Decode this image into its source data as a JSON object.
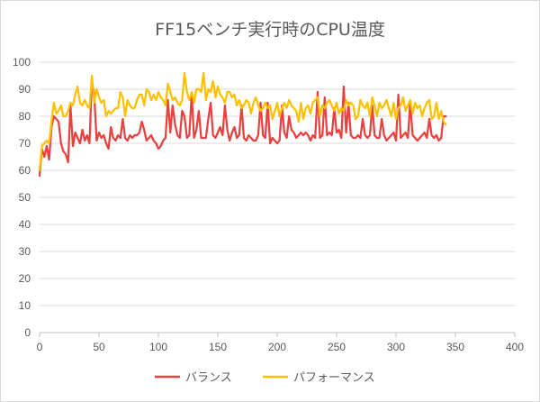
{
  "chart_data": {
    "type": "line",
    "title": "FF15ベンチ実行時のCPU温度",
    "xlim": [
      0,
      400
    ],
    "ylim": [
      0,
      100
    ],
    "x_ticks": [
      0,
      50,
      100,
      150,
      200,
      250,
      300,
      350,
      400
    ],
    "y_ticks": [
      0,
      10,
      20,
      30,
      40,
      50,
      60,
      70,
      80,
      90,
      100
    ],
    "grid": "horizontal",
    "legend_position": "bottom",
    "series": [
      {
        "name": "バランス",
        "color": "#e8413f",
        "x": [
          0,
          2,
          4,
          6,
          8,
          10,
          12,
          14,
          16,
          18,
          20,
          22,
          24,
          26,
          28,
          30,
          32,
          34,
          36,
          38,
          40,
          42,
          44,
          46,
          48,
          50,
          52,
          54,
          56,
          58,
          60,
          62,
          64,
          66,
          68,
          70,
          72,
          74,
          76,
          78,
          80,
          82,
          84,
          86,
          88,
          90,
          92,
          94,
          96,
          98,
          100,
          102,
          104,
          106,
          108,
          110,
          112,
          114,
          116,
          118,
          120,
          122,
          124,
          126,
          128,
          130,
          132,
          134,
          136,
          138,
          140,
          142,
          144,
          146,
          148,
          150,
          152,
          154,
          156,
          158,
          160,
          162,
          164,
          166,
          168,
          170,
          172,
          174,
          176,
          178,
          180,
          182,
          184,
          186,
          188,
          190,
          192,
          194,
          196,
          198,
          200,
          202,
          204,
          206,
          208,
          210,
          212,
          214,
          216,
          218,
          220,
          222,
          224,
          226,
          228,
          230,
          232,
          234,
          236,
          238,
          240,
          242,
          244,
          246,
          248,
          250,
          252,
          254,
          256,
          258,
          260,
          262,
          264,
          266,
          268,
          270,
          272,
          274,
          276,
          278,
          280,
          282,
          284,
          286,
          288,
          290,
          292,
          294,
          296,
          298,
          300,
          302,
          304,
          306,
          308,
          310,
          312,
          314,
          316,
          318,
          320,
          322,
          324,
          326,
          328,
          330,
          332,
          334,
          336,
          338,
          340,
          342
        ],
        "values": [
          58,
          68,
          65,
          69,
          64,
          76,
          80,
          79,
          78,
          70,
          67,
          66,
          63,
          84,
          69,
          74,
          72,
          70,
          75,
          71,
          73,
          70,
          93,
          88,
          71,
          74,
          72,
          73,
          70,
          68,
          76,
          72,
          71,
          73,
          72,
          79,
          72,
          71,
          73,
          72,
          73,
          73,
          74,
          78,
          75,
          71,
          72,
          73,
          71,
          70,
          68,
          69,
          71,
          72,
          86,
          74,
          84,
          77,
          73,
          72,
          82,
          80,
          72,
          73,
          88,
          72,
          75,
          82,
          72,
          72,
          72,
          79,
          85,
          73,
          72,
          74,
          76,
          73,
          84,
          75,
          71,
          74,
          76,
          72,
          73,
          84,
          72,
          71,
          73,
          72,
          71,
          71,
          73,
          85,
          73,
          72,
          85,
          70,
          72,
          71,
          70,
          71,
          84,
          74,
          72,
          80,
          75,
          74,
          72,
          73,
          74,
          73,
          74,
          73,
          71,
          73,
          72,
          89,
          72,
          73,
          87,
          73,
          74,
          73,
          83,
          74,
          75,
          72,
          91,
          74,
          85,
          73,
          72,
          72,
          73,
          72,
          79,
          73,
          72,
          73,
          84,
          73,
          72,
          72,
          79,
          73,
          71,
          72,
          73,
          74,
          71,
          88,
          72,
          73,
          74,
          72,
          85,
          73,
          72,
          71,
          72,
          73,
          74,
          72,
          79,
          73,
          72,
          73,
          71,
          72,
          80,
          80
        ]
      },
      {
        "name": "パフォーマンス",
        "color": "#ffc000",
        "x": [
          0,
          2,
          4,
          6,
          8,
          10,
          12,
          14,
          16,
          18,
          20,
          22,
          24,
          26,
          28,
          30,
          32,
          34,
          36,
          38,
          40,
          42,
          44,
          46,
          48,
          50,
          52,
          54,
          56,
          58,
          60,
          62,
          64,
          66,
          68,
          70,
          72,
          74,
          76,
          78,
          80,
          82,
          84,
          86,
          88,
          90,
          92,
          94,
          96,
          98,
          100,
          102,
          104,
          106,
          108,
          110,
          112,
          114,
          116,
          118,
          120,
          122,
          124,
          126,
          128,
          130,
          132,
          134,
          136,
          138,
          140,
          142,
          144,
          146,
          148,
          150,
          152,
          154,
          156,
          158,
          160,
          162,
          164,
          166,
          168,
          170,
          172,
          174,
          176,
          178,
          180,
          182,
          184,
          186,
          188,
          190,
          192,
          194,
          196,
          198,
          200,
          202,
          204,
          206,
          208,
          210,
          212,
          214,
          216,
          218,
          220,
          222,
          224,
          226,
          228,
          230,
          232,
          234,
          236,
          238,
          240,
          242,
          244,
          246,
          248,
          250,
          252,
          254,
          256,
          258,
          260,
          262,
          264,
          266,
          268,
          270,
          272,
          274,
          276,
          278,
          280,
          282,
          284,
          286,
          288,
          290,
          292,
          294,
          296,
          298,
          300,
          302,
          304,
          306,
          308,
          310,
          312,
          314,
          316,
          318,
          320,
          322,
          324,
          326,
          328,
          330,
          332,
          334,
          336,
          338,
          340,
          342
        ],
        "values": [
          60,
          69,
          70,
          71,
          70,
          78,
          85,
          81,
          82,
          84,
          80,
          80,
          82,
          85,
          84,
          88,
          91,
          85,
          84,
          86,
          84,
          83,
          95,
          85,
          90,
          87,
          85,
          86,
          80,
          82,
          81,
          82,
          83,
          83,
          89,
          87,
          80,
          86,
          84,
          83,
          83,
          86,
          88,
          88,
          84,
          90,
          89,
          86,
          88,
          86,
          89,
          87,
          86,
          84,
          92,
          89,
          86,
          87,
          85,
          84,
          86,
          96,
          89,
          86,
          89,
          85,
          90,
          90,
          89,
          96,
          86,
          90,
          89,
          93,
          87,
          91,
          88,
          87,
          85,
          89,
          89,
          87,
          88,
          84,
          86,
          83,
          84,
          86,
          85,
          81,
          85,
          87,
          84,
          82,
          83,
          85,
          83,
          84,
          79,
          82,
          85,
          80,
          83,
          85,
          83,
          86,
          84,
          83,
          82,
          78,
          85,
          79,
          83,
          84,
          81,
          85,
          86,
          87,
          80,
          84,
          83,
          85,
          86,
          84,
          82,
          85,
          81,
          83,
          82,
          86,
          84,
          85,
          84,
          79,
          80,
          86,
          84,
          83,
          85,
          80,
          87,
          84,
          80,
          85,
          83,
          84,
          86,
          83,
          80,
          85,
          79,
          83,
          84,
          87,
          82,
          84,
          86,
          81,
          85,
          83,
          84,
          80,
          83,
          85,
          86,
          79,
          80,
          85,
          79,
          82,
          78,
          77
        ]
      }
    ]
  }
}
